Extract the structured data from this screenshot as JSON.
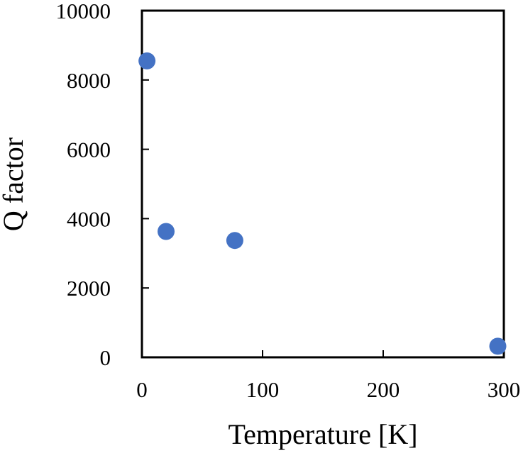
{
  "chart_data": {
    "type": "scatter",
    "title": "",
    "xlabel": "Temperature [K]",
    "ylabel": "Q factor",
    "xlim": [
      0,
      300
    ],
    "ylim": [
      0,
      10000
    ],
    "xticks": [
      "0",
      "100",
      "200",
      "300"
    ],
    "yticks": [
      "0",
      "2000",
      "4000",
      "6000",
      "8000",
      "10000"
    ],
    "grid": false,
    "marker_color": "#4472C4",
    "series": [
      {
        "x": [
          4.2,
          20,
          77,
          295
        ],
        "y": [
          8550,
          3630,
          3370,
          320
        ]
      }
    ]
  }
}
